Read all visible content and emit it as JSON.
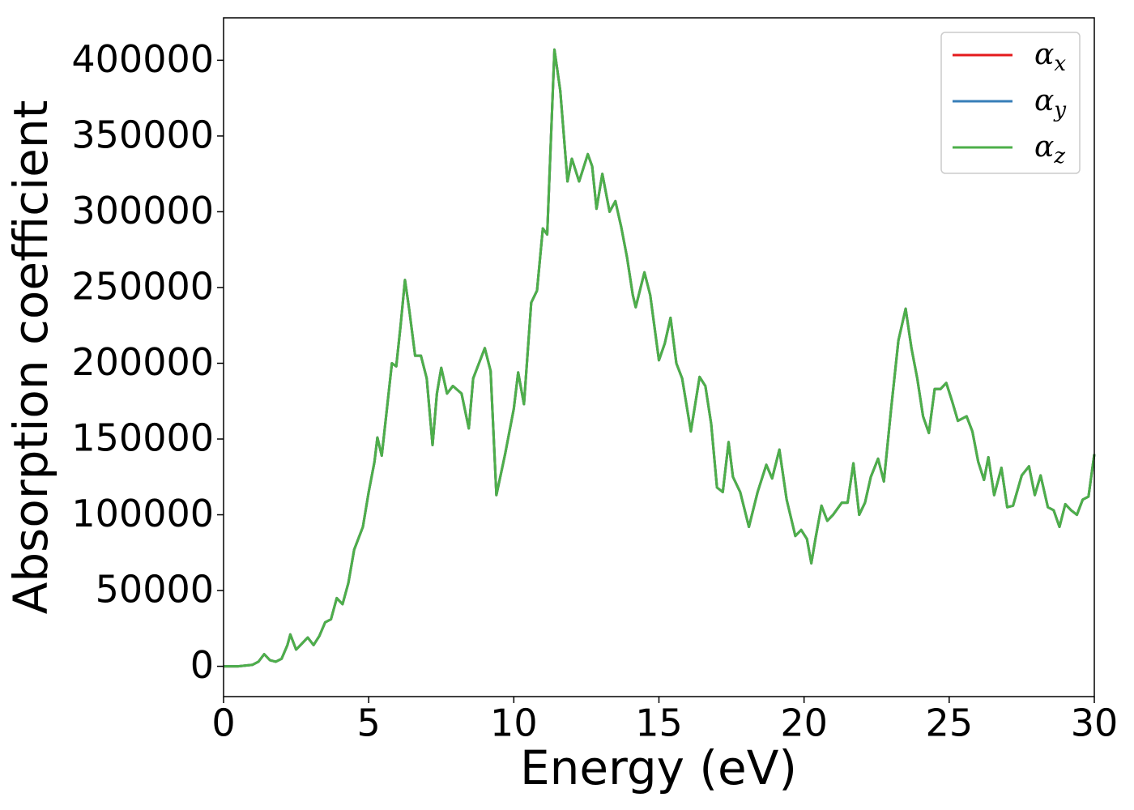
{
  "chart_data": {
    "type": "line",
    "xlabel": "Energy (eV)",
    "ylabel": "Absorption coefficient",
    "x": [
      0,
      0.5,
      1.0,
      1.2,
      1.4,
      1.6,
      1.8,
      2.0,
      2.2,
      2.3,
      2.5,
      2.7,
      2.9,
      3.1,
      3.3,
      3.5,
      3.7,
      3.9,
      4.1,
      4.3,
      4.5,
      4.8,
      5.0,
      5.2,
      5.3,
      5.45,
      5.6,
      5.8,
      5.95,
      6.1,
      6.25,
      6.4,
      6.6,
      6.8,
      7.0,
      7.2,
      7.35,
      7.5,
      7.7,
      7.9,
      8.2,
      8.45,
      8.6,
      8.8,
      9.0,
      9.2,
      9.4,
      9.7,
      10.0,
      10.15,
      10.35,
      10.6,
      10.8,
      11.0,
      11.15,
      11.4,
      11.6,
      11.85,
      12.0,
      12.25,
      12.55,
      12.7,
      12.85,
      13.05,
      13.3,
      13.5,
      13.7,
      13.9,
      14.1,
      14.2,
      14.5,
      14.7,
      15.0,
      15.2,
      15.4,
      15.6,
      15.8,
      16.1,
      16.4,
      16.6,
      16.8,
      17.0,
      17.2,
      17.4,
      17.55,
      17.8,
      18.1,
      18.4,
      18.7,
      18.9,
      19.15,
      19.4,
      19.7,
      19.9,
      20.1,
      20.25,
      20.4,
      20.6,
      20.8,
      21.0,
      21.3,
      21.5,
      21.7,
      21.9,
      22.1,
      22.3,
      22.55,
      22.75,
      23.0,
      23.25,
      23.5,
      23.7,
      23.9,
      24.1,
      24.3,
      24.5,
      24.7,
      24.9,
      25.1,
      25.3,
      25.6,
      25.8,
      26.0,
      26.2,
      26.35,
      26.55,
      26.8,
      27.0,
      27.2,
      27.5,
      27.75,
      27.95,
      28.15,
      28.4,
      28.6,
      28.8,
      29.0,
      29.2,
      29.4,
      29.6,
      29.8,
      30.0
    ],
    "series": [
      {
        "name": "αx",
        "color": "#e41a1c",
        "values": [
          0,
          0,
          1000,
          3000,
          8000,
          4000,
          3000,
          5000,
          14000,
          21000,
          11000,
          15000,
          19000,
          14000,
          20000,
          29000,
          31000,
          45000,
          41000,
          55000,
          77000,
          92000,
          115000,
          135000,
          151000,
          139000,
          165000,
          200000,
          198000,
          225000,
          255000,
          235000,
          205000,
          205000,
          190000,
          146000,
          180000,
          197000,
          180000,
          185000,
          180000,
          157000,
          190000,
          200000,
          210000,
          195000,
          113000,
          140000,
          170000,
          194000,
          173000,
          240000,
          248000,
          289000,
          285000,
          407000,
          380000,
          320000,
          335000,
          320000,
          338000,
          330000,
          302000,
          325000,
          300000,
          307000,
          290000,
          270000,
          245000,
          237000,
          260000,
          245000,
          202000,
          213000,
          230000,
          200000,
          190000,
          155000,
          191000,
          185000,
          160000,
          118000,
          115000,
          148000,
          125000,
          115000,
          92000,
          115000,
          133000,
          124000,
          143000,
          110000,
          86000,
          90000,
          84000,
          68000,
          85000,
          106000,
          96000,
          100000,
          108000,
          108000,
          134000,
          100000,
          108000,
          125000,
          137000,
          122000,
          170000,
          215000,
          236000,
          210000,
          190000,
          165000,
          154000,
          183000,
          183000,
          187000,
          175000,
          162000,
          165000,
          155000,
          135000,
          123000,
          138000,
          113000,
          131000,
          105000,
          106000,
          126000,
          132000,
          113000,
          126000,
          105000,
          103000,
          92000,
          107000,
          103000,
          100000,
          110000,
          112000,
          140000
        ]
      },
      {
        "name": "αy",
        "color": "#377eb8",
        "values": [
          0,
          0,
          1000,
          3000,
          8000,
          4000,
          3000,
          5000,
          14000,
          21000,
          11000,
          15000,
          19000,
          14000,
          20000,
          29000,
          31000,
          45000,
          41000,
          55000,
          77000,
          92000,
          115000,
          135000,
          151000,
          139000,
          165000,
          200000,
          198000,
          225000,
          255000,
          235000,
          205000,
          205000,
          190000,
          146000,
          180000,
          197000,
          180000,
          185000,
          180000,
          157000,
          190000,
          200000,
          210000,
          195000,
          113000,
          140000,
          170000,
          194000,
          173000,
          240000,
          248000,
          289000,
          285000,
          407000,
          380000,
          320000,
          335000,
          320000,
          338000,
          330000,
          302000,
          325000,
          300000,
          307000,
          290000,
          270000,
          245000,
          237000,
          260000,
          245000,
          202000,
          213000,
          230000,
          200000,
          190000,
          155000,
          191000,
          185000,
          160000,
          118000,
          115000,
          148000,
          125000,
          115000,
          92000,
          115000,
          133000,
          124000,
          143000,
          110000,
          86000,
          90000,
          84000,
          68000,
          85000,
          106000,
          96000,
          100000,
          108000,
          108000,
          134000,
          100000,
          108000,
          125000,
          137000,
          122000,
          170000,
          215000,
          236000,
          210000,
          190000,
          165000,
          154000,
          183000,
          183000,
          187000,
          175000,
          162000,
          165000,
          155000,
          135000,
          123000,
          138000,
          113000,
          131000,
          105000,
          106000,
          126000,
          132000,
          113000,
          126000,
          105000,
          103000,
          92000,
          107000,
          103000,
          100000,
          110000,
          112000,
          140000
        ]
      },
      {
        "name": "αz",
        "color": "#4daf4a",
        "values": [
          0,
          0,
          1000,
          3000,
          8000,
          4000,
          3000,
          5000,
          14000,
          21000,
          11000,
          15000,
          19000,
          14000,
          20000,
          29000,
          31000,
          45000,
          41000,
          55000,
          77000,
          92000,
          115000,
          135000,
          151000,
          139000,
          165000,
          200000,
          198000,
          225000,
          255000,
          235000,
          205000,
          205000,
          190000,
          146000,
          180000,
          197000,
          180000,
          185000,
          180000,
          157000,
          190000,
          200000,
          210000,
          195000,
          113000,
          140000,
          170000,
          194000,
          173000,
          240000,
          248000,
          289000,
          285000,
          407000,
          380000,
          320000,
          335000,
          320000,
          338000,
          330000,
          302000,
          325000,
          300000,
          307000,
          290000,
          270000,
          245000,
          237000,
          260000,
          245000,
          202000,
          213000,
          230000,
          200000,
          190000,
          155000,
          191000,
          185000,
          160000,
          118000,
          115000,
          148000,
          125000,
          115000,
          92000,
          115000,
          133000,
          124000,
          143000,
          110000,
          86000,
          90000,
          84000,
          68000,
          85000,
          106000,
          96000,
          100000,
          108000,
          108000,
          134000,
          100000,
          108000,
          125000,
          137000,
          122000,
          170000,
          215000,
          236000,
          210000,
          190000,
          165000,
          154000,
          183000,
          183000,
          187000,
          175000,
          162000,
          165000,
          155000,
          135000,
          123000,
          138000,
          113000,
          131000,
          105000,
          106000,
          126000,
          132000,
          113000,
          126000,
          105000,
          103000,
          92000,
          107000,
          103000,
          100000,
          110000,
          112000,
          140000
        ]
      }
    ],
    "xlim": [
      0,
      30
    ],
    "xticks": [
      0,
      5,
      10,
      15,
      20,
      25,
      30
    ],
    "ylim": [
      -20000,
      428000
    ],
    "yticks": [
      0,
      50000,
      100000,
      150000,
      200000,
      250000,
      300000,
      350000,
      400000
    ],
    "legend": "upper right",
    "grid": false
  }
}
